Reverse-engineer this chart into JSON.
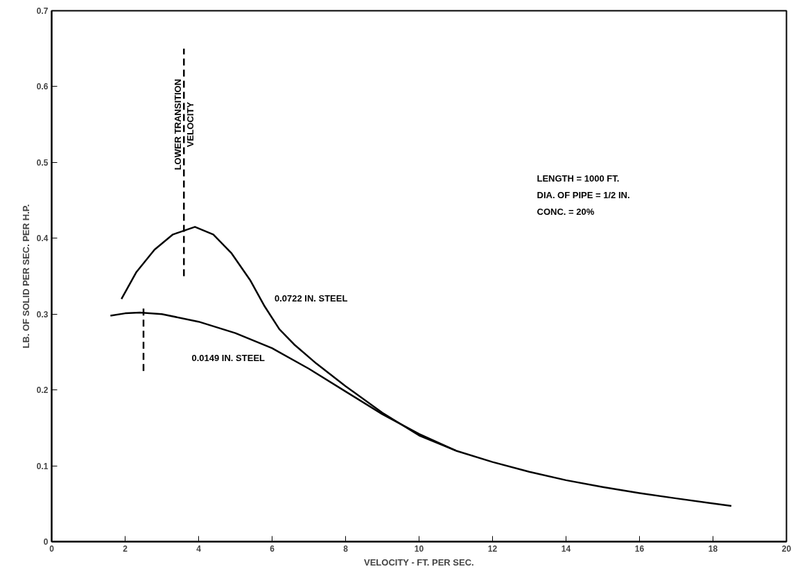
{
  "chart_data": {
    "type": "line",
    "xlabel": "VELOCITY - FT. PER SEC.",
    "ylabel": "LB. OF SOLID PER SEC. PER H.P.",
    "xlim": [
      0,
      20
    ],
    "ylim": [
      0,
      0.7
    ],
    "xticks": [
      0,
      2,
      4,
      6,
      8,
      10,
      12,
      14,
      16,
      18,
      20
    ],
    "yticks": [
      0,
      0.1,
      0.2,
      0.3,
      0.4,
      0.5,
      0.6,
      0.7
    ],
    "grid": false,
    "legend": false,
    "marker": "none",
    "series": [
      {
        "name": "0.0722 IN. STEEL",
        "color": "#000000",
        "line_style": "solid",
        "x": [
          1.9,
          2.3,
          2.8,
          3.3,
          3.9,
          4.4,
          4.9,
          5.4,
          5.8,
          6.2,
          6.6,
          7.2,
          8,
          9,
          10,
          11,
          12,
          13,
          14,
          15,
          16,
          17,
          18.5
        ],
        "values": [
          0.32,
          0.355,
          0.385,
          0.405,
          0.415,
          0.405,
          0.38,
          0.345,
          0.31,
          0.28,
          0.26,
          0.235,
          0.205,
          0.17,
          0.14,
          0.12,
          0.105,
          0.092,
          0.081,
          0.072,
          0.064,
          0.057,
          0.047
        ]
      },
      {
        "name": "0.0149 IN. STEEL",
        "color": "#000000",
        "line_style": "solid",
        "x": [
          1.6,
          2,
          2.4,
          3,
          4,
          5,
          6,
          7,
          8,
          9,
          10,
          11
        ],
        "values": [
          0.298,
          0.301,
          0.302,
          0.3,
          0.29,
          0.275,
          0.255,
          0.228,
          0.198,
          0.168,
          0.142,
          0.12
        ]
      },
      {
        "color": "#000000",
        "line_style": "dashed",
        "x": [
          3.6,
          3.6
        ],
        "values": [
          0.35,
          0.65
        ]
      },
      {
        "color": "#000000",
        "line_style": "dashed",
        "x": [
          2.5,
          2.5
        ],
        "values": [
          0.225,
          0.31
        ]
      }
    ],
    "annotations": [
      {
        "text": "LOWER TRANSITION\nVELOCITY",
        "x": 3.6,
        "y": 0.55
      },
      "LENGTH = 1000 FT.\nDIA. OF PIPE = 1/2 IN.\nCONC. = 20%"
    ]
  }
}
